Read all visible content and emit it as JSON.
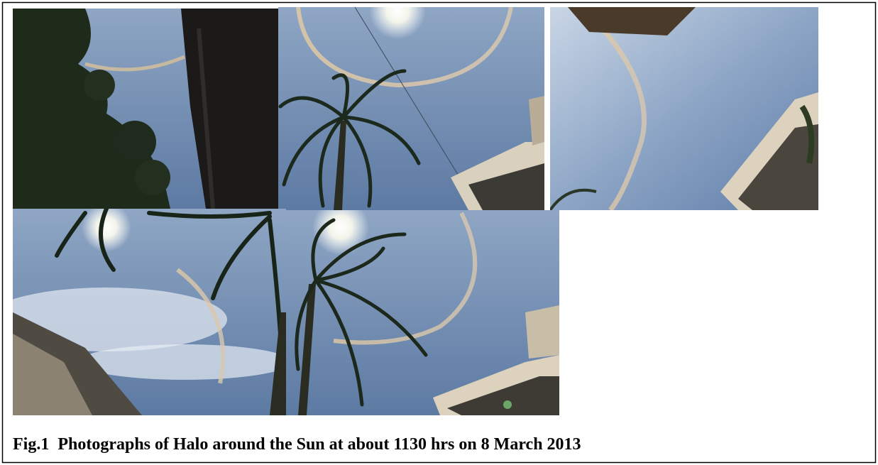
{
  "figure": {
    "caption": "Fig.1  Photographs of Halo around the Sun at about 1130 hrs on 8 March 2013"
  }
}
